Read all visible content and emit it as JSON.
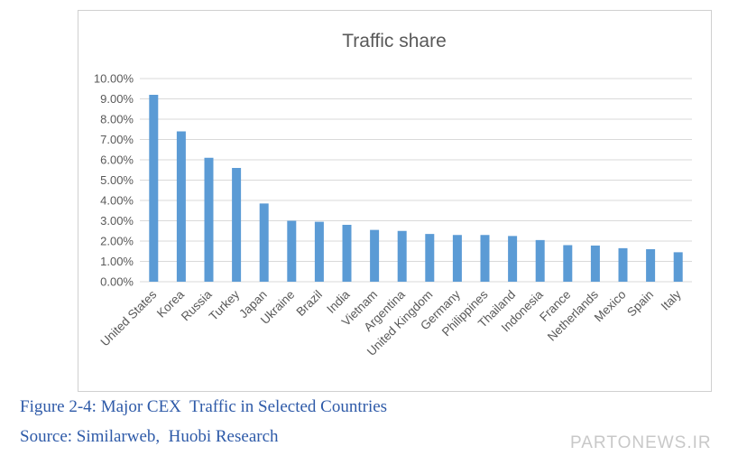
{
  "chart_data": {
    "type": "bar",
    "title": "Traffic share",
    "xlabel": "",
    "ylabel": "",
    "ylim": [
      0,
      10
    ],
    "y_ticks": [
      "0.00%",
      "1.00%",
      "2.00%",
      "3.00%",
      "4.00%",
      "5.00%",
      "6.00%",
      "7.00%",
      "8.00%",
      "9.00%",
      "10.00%"
    ],
    "grid": true,
    "legend": "none",
    "bar_color": "#5b9bd5",
    "categories": [
      "United States",
      "Korea",
      "Russia",
      "Turkey",
      "Japan",
      "Ukraine",
      "Brazil",
      "India",
      "Vietnam",
      "Argentina",
      "United Kingdom",
      "Germany",
      "Philippines",
      "Thailand",
      "Indonesia",
      "France",
      "Netherlands",
      "Mexico",
      "Spain",
      "Italy"
    ],
    "values": [
      9.2,
      7.4,
      6.1,
      5.6,
      3.85,
      3.0,
      2.95,
      2.8,
      2.55,
      2.5,
      2.35,
      2.3,
      2.3,
      2.25,
      2.05,
      1.8,
      1.78,
      1.65,
      1.6,
      1.45
    ]
  },
  "caption": {
    "figure": "Figure 2-4: Major CEX  Traffic in Selected Countries",
    "source": "Source: Similarweb,  Huobi Research"
  },
  "watermark": "PARTONEWS.IR"
}
